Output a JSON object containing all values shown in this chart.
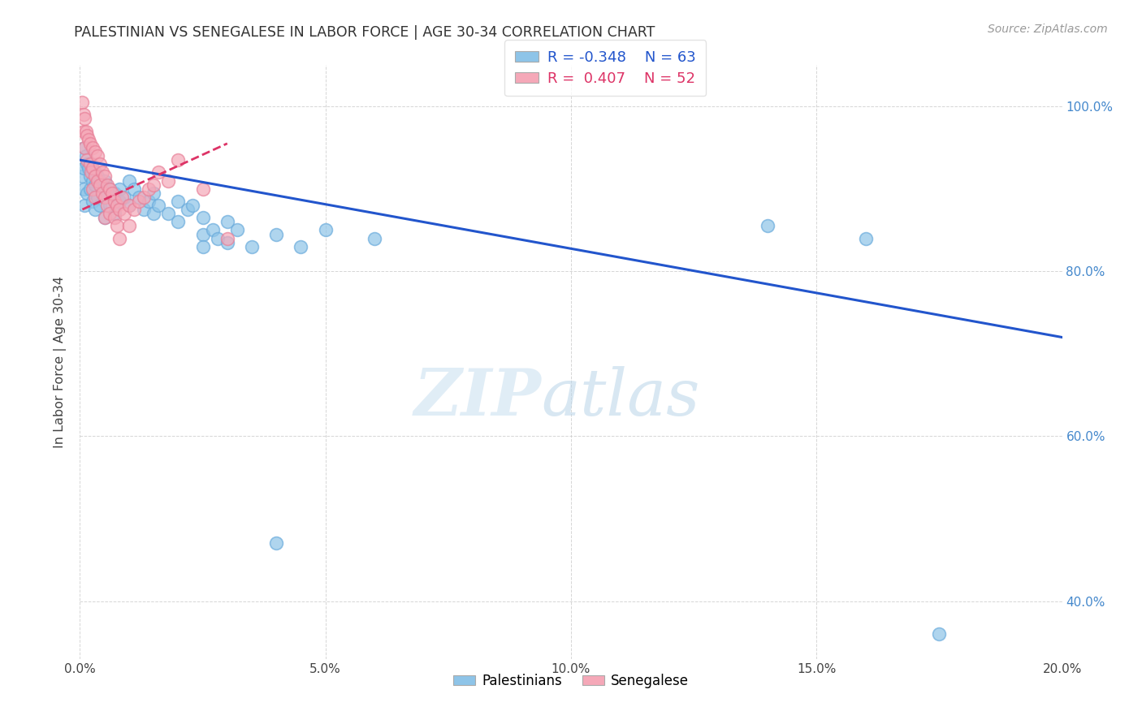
{
  "title": "PALESTINIAN VS SENEGALESE IN LABOR FORCE | AGE 30-34 CORRELATION CHART",
  "source": "Source: ZipAtlas.com",
  "xlabel_vals": [
    0.0,
    5.0,
    10.0,
    15.0,
    20.0
  ],
  "ylabel": "In Labor Force | Age 30-34",
  "ylabel_vals": [
    40.0,
    60.0,
    80.0,
    100.0
  ],
  "xlim": [
    0.0,
    20.0
  ],
  "ylim": [
    33.0,
    105.0
  ],
  "legend_blue_label": "Palestinians",
  "legend_pink_label": "Senegalese",
  "r_blue": -0.348,
  "n_blue": 63,
  "r_pink": 0.407,
  "n_pink": 52,
  "blue_color": "#8ec4e8",
  "pink_color": "#f5a8b8",
  "blue_line_color": "#2255cc",
  "pink_line_color": "#dd3366",
  "blue_line": [
    [
      0.0,
      93.5
    ],
    [
      20.0,
      72.0
    ]
  ],
  "pink_line": [
    [
      0.05,
      87.5
    ],
    [
      3.0,
      95.5
    ]
  ],
  "blue_points": [
    [
      0.05,
      91.5
    ],
    [
      0.07,
      92.5
    ],
    [
      0.08,
      90.0
    ],
    [
      0.1,
      95.0
    ],
    [
      0.1,
      88.0
    ],
    [
      0.12,
      94.0
    ],
    [
      0.15,
      93.0
    ],
    [
      0.15,
      89.5
    ],
    [
      0.18,
      92.5
    ],
    [
      0.2,
      91.5
    ],
    [
      0.2,
      90.0
    ],
    [
      0.22,
      93.0
    ],
    [
      0.25,
      91.0
    ],
    [
      0.25,
      88.5
    ],
    [
      0.3,
      92.0
    ],
    [
      0.3,
      90.5
    ],
    [
      0.3,
      87.5
    ],
    [
      0.35,
      91.5
    ],
    [
      0.35,
      89.0
    ],
    [
      0.4,
      91.0
    ],
    [
      0.4,
      88.0
    ],
    [
      0.45,
      90.5
    ],
    [
      0.5,
      91.0
    ],
    [
      0.5,
      89.0
    ],
    [
      0.5,
      86.5
    ],
    [
      0.6,
      90.0
    ],
    [
      0.6,
      88.0
    ],
    [
      0.7,
      89.5
    ],
    [
      0.7,
      87.0
    ],
    [
      0.8,
      90.0
    ],
    [
      0.8,
      88.5
    ],
    [
      0.9,
      89.0
    ],
    [
      1.0,
      91.0
    ],
    [
      1.0,
      88.0
    ],
    [
      1.1,
      90.0
    ],
    [
      1.2,
      89.0
    ],
    [
      1.3,
      87.5
    ],
    [
      1.4,
      88.5
    ],
    [
      1.5,
      89.5
    ],
    [
      1.5,
      87.0
    ],
    [
      1.6,
      88.0
    ],
    [
      1.8,
      87.0
    ],
    [
      2.0,
      88.5
    ],
    [
      2.0,
      86.0
    ],
    [
      2.2,
      87.5
    ],
    [
      2.3,
      88.0
    ],
    [
      2.5,
      86.5
    ],
    [
      2.5,
      84.5
    ],
    [
      2.5,
      83.0
    ],
    [
      2.7,
      85.0
    ],
    [
      2.8,
      84.0
    ],
    [
      3.0,
      86.0
    ],
    [
      3.0,
      83.5
    ],
    [
      3.2,
      85.0
    ],
    [
      3.5,
      83.0
    ],
    [
      4.0,
      84.5
    ],
    [
      4.5,
      83.0
    ],
    [
      5.0,
      85.0
    ],
    [
      6.0,
      84.0
    ],
    [
      4.0,
      47.0
    ],
    [
      14.0,
      85.5
    ],
    [
      16.0,
      84.0
    ],
    [
      17.5,
      36.0
    ]
  ],
  "pink_points": [
    [
      0.05,
      100.5
    ],
    [
      0.07,
      99.0
    ],
    [
      0.08,
      97.0
    ],
    [
      0.1,
      98.5
    ],
    [
      0.1,
      95.0
    ],
    [
      0.12,
      97.0
    ],
    [
      0.15,
      96.5
    ],
    [
      0.15,
      93.5
    ],
    [
      0.18,
      96.0
    ],
    [
      0.2,
      95.5
    ],
    [
      0.2,
      93.0
    ],
    [
      0.22,
      92.0
    ],
    [
      0.25,
      95.0
    ],
    [
      0.25,
      92.5
    ],
    [
      0.25,
      90.0
    ],
    [
      0.3,
      94.5
    ],
    [
      0.3,
      91.5
    ],
    [
      0.3,
      89.0
    ],
    [
      0.35,
      94.0
    ],
    [
      0.35,
      91.0
    ],
    [
      0.4,
      93.0
    ],
    [
      0.4,
      90.5
    ],
    [
      0.45,
      92.0
    ],
    [
      0.45,
      89.5
    ],
    [
      0.5,
      91.5
    ],
    [
      0.5,
      89.0
    ],
    [
      0.5,
      86.5
    ],
    [
      0.55,
      90.5
    ],
    [
      0.55,
      88.0
    ],
    [
      0.6,
      90.0
    ],
    [
      0.6,
      87.0
    ],
    [
      0.65,
      89.5
    ],
    [
      0.7,
      88.5
    ],
    [
      0.7,
      86.5
    ],
    [
      0.75,
      88.0
    ],
    [
      0.75,
      85.5
    ],
    [
      0.8,
      87.5
    ],
    [
      0.8,
      84.0
    ],
    [
      0.85,
      89.0
    ],
    [
      0.9,
      87.0
    ],
    [
      1.0,
      88.0
    ],
    [
      1.0,
      85.5
    ],
    [
      1.1,
      87.5
    ],
    [
      1.2,
      88.5
    ],
    [
      1.3,
      89.0
    ],
    [
      1.4,
      90.0
    ],
    [
      1.5,
      90.5
    ],
    [
      1.6,
      92.0
    ],
    [
      1.8,
      91.0
    ],
    [
      2.0,
      93.5
    ],
    [
      2.5,
      90.0
    ],
    [
      3.0,
      84.0
    ]
  ]
}
